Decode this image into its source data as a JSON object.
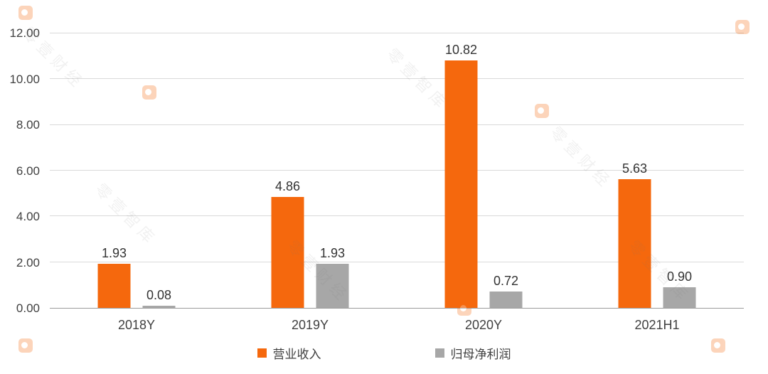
{
  "colors": {
    "revenue_orange": "#f5680d",
    "profit_gray": "#a7a7a7",
    "gridline": "#d9d9d9",
    "axis_line": "#9b9b9b",
    "label_text": "#404040"
  },
  "watermark": {
    "brand_text_1": "零壹财经",
    "brand_text_2": "零壹智库"
  },
  "chart_data": {
    "type": "bar",
    "title": "",
    "xlabel": "",
    "ylabel": "",
    "categories": [
      "2018Y",
      "2019Y",
      "2020Y",
      "2021H1"
    ],
    "series": [
      {
        "name": "营业收入",
        "color": "#f5680d",
        "values": [
          1.93,
          4.86,
          10.82,
          5.63
        ]
      },
      {
        "name": "归母净利润",
        "color": "#a7a7a7",
        "values": [
          0.08,
          1.93,
          0.72,
          0.9
        ]
      }
    ],
    "ylim": [
      0,
      12
    ],
    "ytick_step": 2,
    "ytick_labels": [
      "0.00",
      "2.00",
      "4.00",
      "6.00",
      "8.00",
      "10.00",
      "12.00"
    ],
    "grid": true,
    "legend_position": "bottom",
    "value_labels": "above bars, 2 decimal places"
  }
}
